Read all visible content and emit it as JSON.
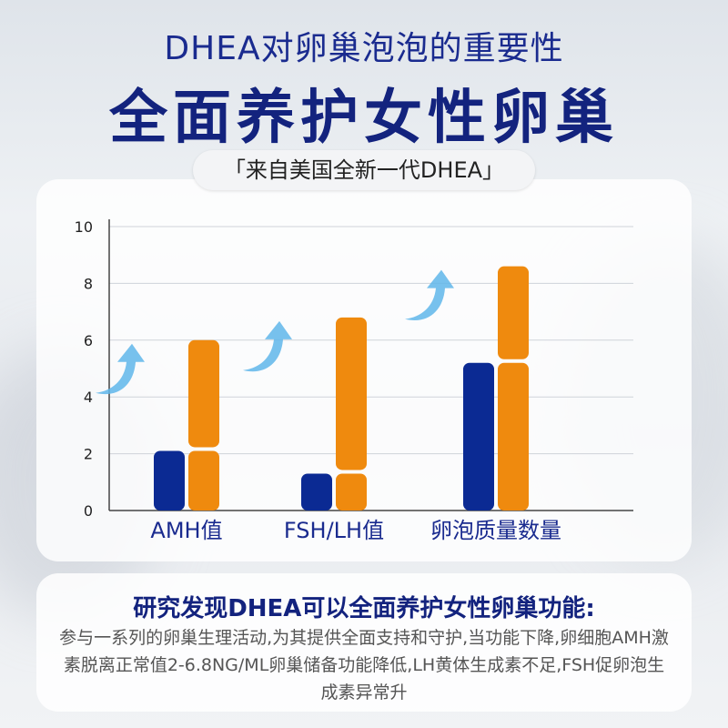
{
  "header": {
    "subtitle": "DHEA对卵巢泡泡的重要性",
    "title": "全面养护女性卵巢",
    "tag": "「来自美国全新一代DHEA」"
  },
  "colors": {
    "navy": "#0b2a93",
    "orange": "#ef8a0e",
    "arrow": "#5fb6ea",
    "title": "#13237e"
  },
  "chart_data": {
    "type": "bar",
    "categories": [
      "AMH值",
      "FSH/LH值",
      "卵泡质量数量"
    ],
    "series": [
      {
        "values": [
          2.1,
          1.3,
          5.2
        ],
        "color": "#0b2a93"
      },
      {
        "values": [
          6.0,
          6.8,
          8.6
        ],
        "color": "#ef8a0e",
        "split_at": [
          2.1,
          1.3,
          5.2
        ]
      }
    ],
    "ylim": [
      0,
      10
    ],
    "yticks": [
      "0",
      "2",
      "4",
      "6",
      "8",
      "10"
    ],
    "grid": true,
    "annotations": [
      "up-arrow-icon",
      "up-arrow-icon",
      "up-arrow-icon"
    ]
  },
  "info": {
    "title": "研究发现DHEA可以全面养护女性卵巢功能:",
    "body": "参与一系列的卵巢生理活动,为其提供全面支持和守护,当功能下降,卵细胞AMH激素脱离正常值2-6.8NG/ML卵巢储备功能降低,LH黄体生成素不足,FSH促卵泡生成素异常升"
  }
}
